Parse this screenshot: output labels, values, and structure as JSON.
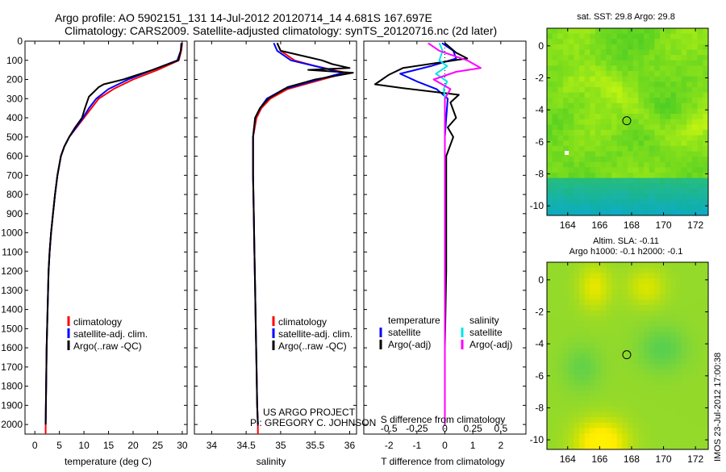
{
  "header": {
    "title_line1": "Argo profile: AO 5902151_131 14-Jul-2012 20120714_14 4.681S 167.697E",
    "title_line2": "Climatology: CARS2009. Satellite-adjusted climatology: synTS_20120716.nc (2d later)"
  },
  "colors": {
    "climatology": "#ff0000",
    "satellite": "#0000ff",
    "argo": "#000000",
    "salinity_satellite": "#00e5e5",
    "salinity_argo": "#ff00ff"
  },
  "credits": {
    "project": "US ARGO PROJECT",
    "pi": "PI: GREGORY C. JOHNSON"
  },
  "timestamp": "IMOS 23-Jul-2012 17:00:38",
  "chart_data": [
    {
      "id": "temperature",
      "type": "line",
      "xlabel": "temperature (deg C)",
      "ylabel": "",
      "xlim": [
        -2,
        31
      ],
      "ylim": [
        2050,
        0
      ],
      "xticks": [
        0,
        5,
        10,
        15,
        20,
        25,
        30
      ],
      "yticks": [
        0,
        100,
        200,
        300,
        400,
        500,
        600,
        700,
        800,
        900,
        1000,
        1100,
        1200,
        1300,
        1400,
        1500,
        1600,
        1700,
        1800,
        1900,
        2000
      ],
      "legend": [
        "climatology",
        "satellite-adj. clim.",
        "Argo(..raw -QC)"
      ],
      "series": [
        {
          "name": "climatology",
          "color": "#ff0000",
          "x": [
            30,
            29.8,
            29.3,
            25,
            20,
            16,
            13,
            11.5,
            10,
            8.5,
            7,
            6,
            5.3,
            4.6,
            4.1,
            3.7,
            3.3,
            3.0,
            2.8,
            2.6,
            2.4,
            2.3,
            2.2,
            2.2
          ],
          "y": [
            10,
            50,
            100,
            150,
            200,
            250,
            300,
            350,
            400,
            450,
            500,
            550,
            600,
            700,
            800,
            900,
            1000,
            1100,
            1200,
            1400,
            1600,
            1800,
            2000,
            2050
          ]
        },
        {
          "name": "satellite-adj. clim.",
          "color": "#0000ff",
          "x": [
            29.8,
            29.7,
            29.0,
            24,
            19,
            15,
            12.5,
            11,
            9.8,
            8.4,
            7,
            6,
            5.3,
            4.6,
            4.1,
            3.7,
            3.3,
            3.0,
            2.8,
            2.6,
            2.4,
            2.3,
            2.2
          ],
          "y": [
            10,
            50,
            100,
            150,
            200,
            250,
            300,
            350,
            400,
            450,
            500,
            550,
            600,
            700,
            800,
            900,
            1000,
            1100,
            1200,
            1400,
            1600,
            1800,
            2000
          ]
        },
        {
          "name": "Argo(..raw -QC)",
          "color": "#000000",
          "x": [
            29.9,
            29.7,
            29.2,
            24,
            18,
            14,
            13,
            12,
            11,
            10.2,
            9.6,
            8.2,
            7,
            6,
            5.3,
            4.6,
            4.1,
            3.7,
            3.3,
            3.0,
            2.8,
            2.6,
            2.4,
            2.3,
            2.2
          ],
          "y": [
            10,
            50,
            100,
            150,
            200,
            225,
            240,
            265,
            290,
            350,
            400,
            450,
            500,
            550,
            600,
            700,
            800,
            900,
            1000,
            1100,
            1200,
            1400,
            1600,
            1800,
            2000
          ]
        }
      ]
    },
    {
      "id": "salinity",
      "type": "line",
      "xlabel": "salinity",
      "ylabel": "",
      "xlim": [
        33.75,
        36.1
      ],
      "ylim": [
        2050,
        0
      ],
      "xticks": [
        34,
        34.5,
        35,
        35.5,
        36
      ],
      "xticklabels": [
        "34",
        "34.5",
        "35",
        "35.5",
        "36"
      ],
      "legend": [
        "climatology",
        "satellite-adj. clim.",
        "Argo(..raw -QC)"
      ],
      "series": [
        {
          "name": "climatology",
          "color": "#ff0000",
          "x": [
            34.95,
            35.0,
            35.2,
            35.5,
            35.95,
            35.6,
            35.1,
            34.85,
            34.72,
            34.65,
            34.6,
            34.6,
            34.61,
            34.62,
            34.63,
            34.64,
            34.65,
            34.66,
            34.67,
            34.67
          ],
          "y": [
            10,
            50,
            100,
            130,
            165,
            200,
            250,
            300,
            350,
            400,
            500,
            700,
            900,
            1100,
            1300,
            1500,
            1700,
            1900,
            2000,
            2050
          ]
        },
        {
          "name": "satellite-adj. clim.",
          "color": "#0000ff",
          "x": [
            34.9,
            34.95,
            35.15,
            35.5,
            35.9,
            35.55,
            35.05,
            34.8,
            34.7,
            34.63,
            34.6,
            34.6,
            34.61,
            34.62,
            34.63,
            34.64,
            34.65,
            34.66,
            34.67
          ],
          "y": [
            10,
            50,
            100,
            130,
            165,
            200,
            250,
            300,
            350,
            400,
            500,
            700,
            900,
            1100,
            1300,
            1500,
            1700,
            1900,
            2000
          ]
        },
        {
          "name": "Argo(..raw -QC)",
          "color": "#000000",
          "x": [
            34.95,
            35.0,
            35.6,
            35.75,
            36.0,
            35.4,
            36.05,
            35.5,
            35.1,
            34.82,
            34.7,
            34.63,
            34.6,
            34.6,
            34.61,
            34.62,
            34.63,
            34.64,
            34.65,
            34.66,
            34.67
          ],
          "y": [
            10,
            50,
            100,
            120,
            140,
            150,
            165,
            200,
            240,
            300,
            350,
            400,
            500,
            700,
            900,
            1100,
            1300,
            1500,
            1700,
            1900,
            2000
          ]
        }
      ]
    },
    {
      "id": "difference",
      "type": "line",
      "xlabel": "T difference from climatology",
      "xlabel_top": "S difference from climatology",
      "xlim": [
        -2.9,
        2.9
      ],
      "ylim": [
        2050,
        0
      ],
      "xticks": [
        -2,
        -1,
        0,
        1,
        2
      ],
      "xticklabels": [
        "-2",
        "-1",
        "0",
        "1",
        "2"
      ],
      "sticks": [
        -0.5,
        -0.25,
        0,
        0.25,
        0.5
      ],
      "sticklabels": [
        "-0.5",
        "-0.25",
        "0",
        "0.25",
        "0.5"
      ],
      "s_scale_deg_per_psu": 4,
      "legend_temperature": [
        "temperature",
        "satellite",
        "Argo(-adj)"
      ],
      "legend_salinity": [
        "salinity",
        "satellite",
        "Argo(-adj)"
      ],
      "series": [
        {
          "name": "temperature satellite",
          "color": "#0000ff",
          "unit": "T",
          "x": [
            -0.1,
            0.3,
            0.4,
            -0.5,
            -1.6,
            -1.0,
            -0.3,
            0.1,
            0.05,
            0,
            0,
            0,
            0,
            0,
            0,
            0
          ],
          "y": [
            10,
            50,
            90,
            130,
            170,
            210,
            250,
            300,
            400,
            500,
            700,
            1000,
            1300,
            1600,
            1900,
            2000
          ]
        },
        {
          "name": "temperature Argo(-adj)",
          "color": "#000000",
          "unit": "T",
          "x": [
            0,
            0.4,
            0.8,
            -1.5,
            -2.0,
            -2.5,
            -1.5,
            0.5,
            0.2,
            0.4,
            0.1,
            0.3,
            0.05,
            0.05,
            0.05,
            0,
            0,
            0
          ],
          "y": [
            10,
            60,
            90,
            140,
            175,
            225,
            245,
            280,
            320,
            400,
            450,
            500,
            600,
            800,
            1200,
            1600,
            1900,
            2000
          ]
        },
        {
          "name": "salinity satellite",
          "color": "#00e5e5",
          "unit": "S",
          "x": [
            -0.05,
            -0.02,
            -0.05,
            0.02,
            -0.08,
            0.02,
            -0.01,
            0,
            0,
            0,
            0,
            0
          ],
          "y": [
            10,
            50,
            100,
            130,
            170,
            210,
            250,
            300,
            500,
            1000,
            1500,
            2000
          ]
        },
        {
          "name": "salinity Argo(-adj)",
          "color": "#ff00ff",
          "unit": "S",
          "x": [
            -0.15,
            -0.05,
            0.2,
            0.32,
            0.1,
            -0.1,
            0.05,
            0,
            0,
            0,
            0,
            0
          ],
          "y": [
            10,
            50,
            100,
            140,
            160,
            200,
            250,
            300,
            500,
            1000,
            1500,
            2000
          ]
        }
      ]
    }
  ],
  "maps": [
    {
      "id": "sst",
      "title": "sat. SST: 29.8 Argo: 29.8",
      "subtitle": "",
      "xlim": [
        162.7,
        172.8
      ],
      "ylim": [
        -10.6,
        1.1
      ],
      "xticks": [
        164,
        166,
        168,
        170,
        172
      ],
      "yticks": [
        0,
        -2,
        -4,
        -6,
        -8,
        -10
      ],
      "profile_lon": 167.697,
      "profile_lat": -4.681
    },
    {
      "id": "sla",
      "title": "Altim. SLA: -0.11",
      "subtitle": "Argo h1000: -0.1 h2000: -0.1",
      "xlim": [
        162.7,
        172.8
      ],
      "ylim": [
        -10.6,
        1.1
      ],
      "xticks": [
        164,
        166,
        168,
        170,
        172
      ],
      "yticks": [
        0,
        -2,
        -4,
        -6,
        -8,
        -10
      ],
      "profile_lon": 167.697,
      "profile_lat": -4.681
    }
  ]
}
